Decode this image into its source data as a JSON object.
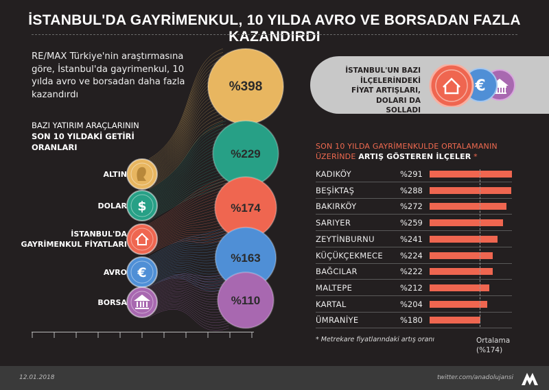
{
  "title": "İSTANBUL'DA GAYRİMENKUL, 10 YILDA AVRO VE BORSADAN FAZLA KAZANDIRDI",
  "intro": "RE/MAX Türkiye'nin araştırmasına göre, İstanbul'da gayrimenkul, 10 yılda avro ve borsadan daha fazla kazandırdı",
  "sub_heading": {
    "line1": "BAZI YATIRIM ARAÇLARININ",
    "line2": "SON 10 YILDAKİ GETİRİ",
    "line3": "ORANLARI"
  },
  "callout": "İSTANBUL'UN BAZI İLÇELERİNDEKİ FİYAT ARTIŞLARI, DOLARI DA SOLLADI",
  "districts_heading": {
    "line1": "SON 10 YILDA GAYRİMENKULDE ORTALAMANIN",
    "line2_prefix": "ÜZERİNDE ",
    "line2_bold": "ARTIŞ GÖSTEREN İLÇELER",
    "line2_suffix": " *"
  },
  "footnote": "* Metrekare fiyatlarındaki artış oranı",
  "average_label": {
    "line1": "Ortalama",
    "line2": "(%174)"
  },
  "date": "12.01.2018",
  "credit": "twitter.com/anadolujansi",
  "colors": {
    "altin": "#e8b660",
    "dolar": "#27a086",
    "gayrimenkul": "#ef6650",
    "avro": "#4f8fd6",
    "borsa": "#a868b0",
    "bar": "#ef6650",
    "heading_accent": "#f06a50"
  },
  "chart_data": [
    {
      "type": "bar",
      "title": "BAZI YATIRIM ARAÇLARININ SON 10 YILDAKİ GETİRİ ORANLARI",
      "categories": [
        "ALTIN",
        "DOLAR",
        "İSTANBUL'DA GAYRİMENKUL FİYATLARI",
        "AVRO",
        "BORSA"
      ],
      "values": [
        398,
        229,
        174,
        163,
        110
      ],
      "value_labels": [
        "%398",
        "%229",
        "%174",
        "%163",
        "%110"
      ],
      "icons": [
        "coin-face-icon",
        "dollar-icon",
        "house-icon",
        "euro-icon",
        "bank-building-icon"
      ]
    },
    {
      "type": "bar",
      "title": "SON 10 YILDA GAYRİMENKULDE ORTALAMANIN ÜZERİNDE ARTIŞ GÖSTEREN İLÇELER *",
      "categories": [
        "KADIKÖY",
        "BEŞİKTAŞ",
        "BAKIRKÖY",
        "SARIYER",
        "ZEYTİNBURNU",
        "KÜÇÜKÇEKMECE",
        "BAĞCILAR",
        "MALTEPE",
        "KARTAL",
        "ÜMRANİYE"
      ],
      "values": [
        291,
        288,
        272,
        259,
        241,
        224,
        222,
        212,
        204,
        180
      ],
      "value_labels": [
        "%291",
        "%288",
        "%272",
        "%259",
        "%241",
        "%224",
        "%222",
        "%212",
        "%204",
        "%180"
      ],
      "reference_line": {
        "label": "Ortalama (%174)",
        "value": 174
      }
    }
  ]
}
